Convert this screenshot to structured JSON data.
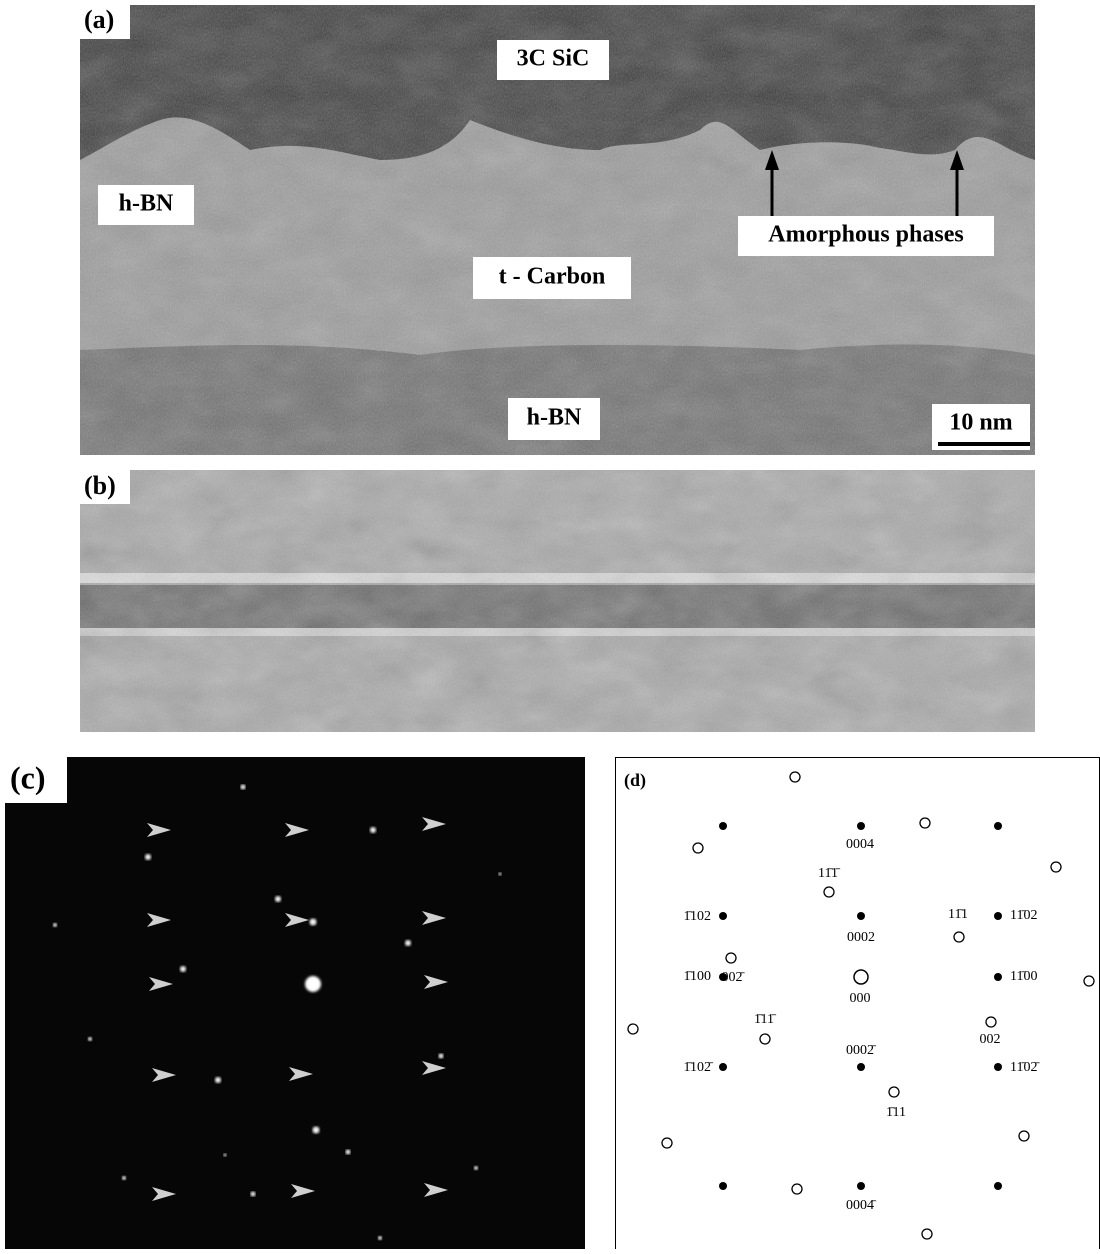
{
  "panel_a": {
    "label": "(a)",
    "annotations": [
      "3C SiC",
      "h-BN",
      "Amorphous phases",
      "t - Carbon",
      "h-BN"
    ],
    "scale_bar": "10 nm"
  },
  "panel_b": {
    "label": "(b)"
  },
  "panel_c": {
    "label": "(c)"
  },
  "panel_d": {
    "label": "(d)",
    "indices": [
      "0004",
      "11̄1̄",
      "1̄102",
      "0002",
      "11̄1",
      "11̄02",
      "002̄",
      "1̄100",
      "11̄00",
      "000",
      "1̄11̄",
      "002",
      "0002̄",
      "1̄102̄",
      "11̄02̄",
      "1̄11",
      "0004̄"
    ]
  }
}
